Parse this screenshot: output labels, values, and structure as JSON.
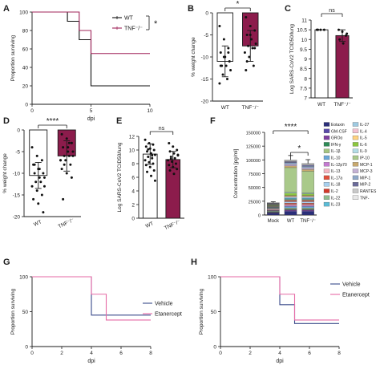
{
  "panels": [
    "A",
    "B",
    "C",
    "D",
    "E",
    "F",
    "G",
    "H"
  ],
  "chart_data": [
    {
      "panel": "A",
      "type": "line",
      "step": true,
      "xlabel": "dpi",
      "ylabel": "Proportion surviving",
      "xlim": [
        0,
        10
      ],
      "ylim": [
        0,
        100
      ],
      "xticks": [
        0,
        5,
        10
      ],
      "yticks": [
        0,
        20,
        40,
        60,
        80,
        100
      ],
      "series": [
        {
          "name": "WT",
          "color": "#111111",
          "x": [
            0,
            3,
            3,
            4,
            4,
            5,
            5,
            10
          ],
          "y": [
            100,
            100,
            90,
            90,
            70,
            70,
            20,
            20
          ]
        },
        {
          "name": "TNF⁻/⁻",
          "color": "#a0245a",
          "x": [
            0,
            4,
            4,
            5,
            5,
            10
          ],
          "y": [
            100,
            100,
            80,
            80,
            55,
            55
          ]
        }
      ],
      "annotation": "*",
      "legend": "top-right"
    },
    {
      "panel": "B",
      "type": "bar",
      "ylabel": "% weight change",
      "categories": [
        "WT",
        "TNF⁻/⁻"
      ],
      "ylim": [
        -20,
        0
      ],
      "yticks": [
        -20,
        -15,
        -10,
        -5,
        0
      ],
      "values": [
        -11,
        -7.5
      ],
      "errors": [
        3.5,
        3.5
      ],
      "colors": [
        "#ffffff",
        "#8c1c4c"
      ],
      "points": [
        [
          -3,
          -6,
          -8,
          -9,
          -10,
          -11,
          -12,
          -12,
          -13,
          -14,
          -15,
          -16,
          -10,
          -9,
          -12
        ],
        [
          -1,
          -3,
          -4,
          -5,
          -6,
          -7,
          -7.5,
          -8,
          -9,
          -10,
          -12,
          -13,
          -5,
          -8,
          -11
        ]
      ],
      "significance": "*"
    },
    {
      "panel": "C",
      "type": "bar",
      "ylabel": "Log SARS-CoV2 TCID50/lung",
      "categories": [
        "WT",
        "TNF⁻/⁻"
      ],
      "ylim": [
        7,
        11
      ],
      "yticks": [
        7,
        7.5,
        8,
        8.5,
        9,
        9.5,
        10,
        10.5,
        11
      ],
      "values": [
        10.5,
        10.2
      ],
      "errors": [
        0,
        0.3
      ],
      "colors": [
        "#ffffff",
        "#8c1c4c"
      ],
      "points": [
        [
          10.5,
          10.5,
          10.5,
          10.5
        ],
        [
          10.5,
          10.4,
          10.2,
          10.0,
          9.8,
          10.3
        ]
      ],
      "significance": "ns"
    },
    {
      "panel": "D",
      "type": "bar",
      "ylabel": "% weight change",
      "categories": [
        "WT",
        "TNF⁻/⁻"
      ],
      "ylim": [
        -20,
        0
      ],
      "yticks": [
        -20,
        -15,
        -10,
        -5,
        0
      ],
      "values": [
        -10.5,
        -6
      ],
      "errors": [
        3,
        3.5
      ],
      "colors": [
        "#ffffff",
        "#8c1c4c"
      ],
      "points": [
        [
          -4,
          -6,
          -7,
          -8,
          -9,
          -10,
          -10,
          -11,
          -11,
          -12,
          -12,
          -13,
          -14,
          -15,
          -16,
          -17,
          -19,
          -8,
          -9,
          -13
        ],
        [
          -1,
          -2,
          -3,
          -4,
          -5,
          -5,
          -6,
          -6,
          -7,
          -7,
          -8,
          -9,
          -10,
          -11,
          -16,
          -4,
          -6,
          -8,
          -3,
          -7
        ]
      ],
      "significance": "****"
    },
    {
      "panel": "E",
      "type": "bar",
      "ylabel": "Log SARS-CoV2 TCID50/lung",
      "categories": [
        "WT",
        "TNF⁻/⁻"
      ],
      "ylim": [
        0,
        12
      ],
      "yticks": [
        0,
        2,
        4,
        6,
        8,
        10,
        12
      ],
      "values": [
        9.4,
        8.6
      ],
      "errors": [
        1.5,
        1.2
      ],
      "colors": [
        "#ffffff",
        "#8c1c4c"
      ],
      "points": [
        [
          11.5,
          11,
          10.8,
          10.5,
          10.2,
          10,
          9.8,
          9.5,
          9.3,
          9,
          8.8,
          8.5,
          8.2,
          8,
          7.8,
          7.5,
          7,
          6.8,
          6.2,
          5.5,
          10.1,
          9.2
        ],
        [
          11,
          10.5,
          10,
          9.8,
          9.5,
          9.2,
          9,
          8.8,
          8.5,
          8.3,
          8,
          7.8,
          7.5,
          7.2,
          7,
          6.5,
          9.3,
          8.7
        ]
      ],
      "significance": "ns"
    },
    {
      "panel": "F",
      "type": "bar",
      "stacked": true,
      "ylabel": "Concentration [pg/ml]",
      "categories": [
        "Mock",
        "WT",
        "TNF⁻/⁻"
      ],
      "ylim": [
        0,
        150000
      ],
      "yticks": [
        0,
        25000,
        50000,
        75000,
        100000,
        125000,
        150000
      ],
      "ytick_labels": [
        "0",
        "25000",
        "50000",
        "75000",
        "100000",
        "125000",
        "150000"
      ],
      "series": [
        {
          "name": "Eotaxin",
          "color": "#2b2f7a",
          "values": [
            3000,
            6000,
            6000
          ]
        },
        {
          "name": "GM-CSF",
          "color": "#5a4aa8",
          "values": [
            1000,
            1500,
            1500
          ]
        },
        {
          "name": "GROα",
          "color": "#7f3fa0",
          "values": [
            1000,
            2000,
            2000
          ]
        },
        {
          "name": "IFN-γ",
          "color": "#2e8b57",
          "values": [
            800,
            1000,
            1000
          ]
        },
        {
          "name": "IL-1β",
          "color": "#a4c480",
          "values": [
            1000,
            2000,
            2000
          ]
        },
        {
          "name": "IL-10",
          "color": "#6aa7d8",
          "values": [
            1000,
            3000,
            3000
          ]
        },
        {
          "name": "IL-12p70",
          "color": "#c47ad1",
          "values": [
            800,
            2000,
            2000
          ]
        },
        {
          "name": "IL-13",
          "color": "#f4b6c2",
          "values": [
            1000,
            2000,
            2000
          ]
        },
        {
          "name": "IL-17a",
          "color": "#e0503c",
          "values": [
            800,
            2000,
            2000
          ]
        },
        {
          "name": "IL-18",
          "color": "#a7d0ef",
          "values": [
            1500,
            3000,
            3000
          ]
        },
        {
          "name": "IL-2",
          "color": "#d23a2a",
          "values": [
            800,
            2000,
            2000
          ]
        },
        {
          "name": "IL-22",
          "color": "#8fbc8f",
          "values": [
            800,
            2000,
            2000
          ]
        },
        {
          "name": "IL-23",
          "color": "#5bbcd6",
          "values": [
            800,
            2000,
            2000
          ]
        },
        {
          "name": "IL-27",
          "color": "#9ecae1",
          "values": [
            800,
            2000,
            2000
          ]
        },
        {
          "name": "IL-4",
          "color": "#f2c1d1",
          "values": [
            600,
            1500,
            1500
          ]
        },
        {
          "name": "IL-5",
          "color": "#ffd27f",
          "values": [
            600,
            1500,
            1500
          ]
        },
        {
          "name": "IL-6",
          "color": "#8cc63f",
          "values": [
            1000,
            4000,
            3000
          ]
        },
        {
          "name": "IL-9",
          "color": "#b3dde6",
          "values": [
            600,
            1500,
            1500
          ]
        },
        {
          "name": "IP-10",
          "color": "#a9c98a",
          "values": [
            1000,
            45000,
            39500
          ]
        },
        {
          "name": "MCP-1",
          "color": "#c8a96e",
          "values": [
            600,
            3000,
            3000
          ]
        },
        {
          "name": "MCP-3",
          "color": "#c4b1d4",
          "values": [
            600,
            3000,
            3000
          ]
        },
        {
          "name": "MIP-1",
          "color": "#8fa8c8",
          "values": [
            600,
            3000,
            3000
          ]
        },
        {
          "name": "MIP-2",
          "color": "#6b6b9a",
          "values": [
            600,
            2000,
            2000
          ]
        },
        {
          "name": "RANTES",
          "color": "#c9c9c9",
          "values": [
            500,
            2000,
            2000
          ]
        },
        {
          "name": "TNF-",
          "color": "#e8e8e8",
          "values": [
            300,
            1000,
            1000
          ]
        }
      ],
      "errors": [
        2000,
        8000,
        7000
      ],
      "significance": [
        {
          "between": [
            "Mock",
            "TNF⁻/⁻"
          ],
          "label": "****"
        },
        {
          "between": [
            "WT",
            "TNF⁻/⁻"
          ],
          "label": "*"
        }
      ],
      "legend": "right"
    },
    {
      "panel": "G",
      "type": "line",
      "step": true,
      "xlabel": "dpi",
      "ylabel": "Proportion surviving",
      "xlim": [
        0,
        8
      ],
      "ylim": [
        0,
        100
      ],
      "xticks": [
        0,
        2,
        4,
        6,
        8
      ],
      "yticks": [
        0,
        50,
        100
      ],
      "series": [
        {
          "name": "Vehicle",
          "color": "#3a4a8a",
          "x": [
            0,
            4,
            4,
            8
          ],
          "y": [
            100,
            100,
            45,
            45
          ]
        },
        {
          "name": "Etanercept",
          "color": "#e66aa6",
          "x": [
            0,
            4,
            4,
            5,
            5,
            8
          ],
          "y": [
            100,
            100,
            75,
            75,
            38,
            38
          ]
        }
      ],
      "legend": "right"
    },
    {
      "panel": "H",
      "type": "line",
      "step": true,
      "xlabel": "dpi",
      "ylabel": "Proportion surviving",
      "xlim": [
        0,
        8
      ],
      "ylim": [
        0,
        100
      ],
      "xticks": [
        0,
        2,
        4,
        6,
        8
      ],
      "yticks": [
        0,
        50,
        100
      ],
      "series": [
        {
          "name": "Vehicle",
          "color": "#3a4a8a",
          "x": [
            0,
            4,
            4,
            5,
            5,
            8
          ],
          "y": [
            100,
            100,
            60,
            60,
            33,
            33
          ]
        },
        {
          "name": "Etanercept",
          "color": "#e66aa6",
          "x": [
            0,
            4,
            4,
            5,
            5,
            8
          ],
          "y": [
            100,
            100,
            75,
            75,
            38,
            38
          ]
        }
      ],
      "legend": "top-right"
    }
  ]
}
